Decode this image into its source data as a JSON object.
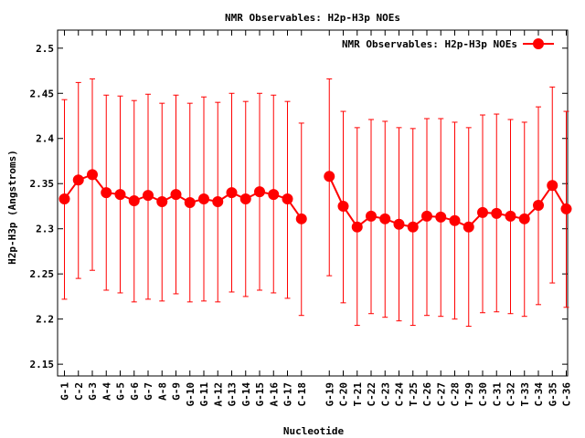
{
  "chart_data": {
    "type": "line",
    "title": "NMR Observables: H2p-H3p NOEs",
    "xlabel": "Nucleotide",
    "ylabel": "H2p-H3p (Angstroms)",
    "ylim": [
      2.137,
      2.52
    ],
    "yticks": [
      "2.15",
      "2.2",
      "2.25",
      "2.3",
      "2.35",
      "2.4",
      "2.45",
      "2.5"
    ],
    "grid": false,
    "legend_position": "top-right",
    "color": "#ff0000",
    "series": [
      {
        "name": "NMR Observables: H2p-H3p NOEs",
        "segments": [
          {
            "categories": [
              "G-1",
              "C-2",
              "G-3",
              "A-4",
              "G-5",
              "G-6",
              "G-7",
              "A-8",
              "G-9",
              "G-10",
              "G-11",
              "A-12",
              "G-13",
              "G-14",
              "G-15",
              "A-16",
              "G-17",
              "C-18"
            ],
            "values": [
              2.333,
              2.354,
              2.36,
              2.34,
              2.338,
              2.331,
              2.337,
              2.33,
              2.338,
              2.329,
              2.333,
              2.33,
              2.34,
              2.333,
              2.341,
              2.338,
              2.333,
              2.311
            ],
            "err_high": [
              2.443,
              2.462,
              2.466,
              2.448,
              2.447,
              2.442,
              2.449,
              2.439,
              2.448,
              2.439,
              2.446,
              2.44,
              2.45,
              2.441,
              2.45,
              2.448,
              2.441,
              2.417
            ],
            "err_low": [
              2.222,
              2.245,
              2.254,
              2.232,
              2.229,
              2.219,
              2.222,
              2.22,
              2.228,
              2.219,
              2.22,
              2.219,
              2.23,
              2.225,
              2.232,
              2.229,
              2.223,
              2.204
            ]
          },
          {
            "categories": [
              "G-19",
              "C-20",
              "T-21",
              "C-22",
              "C-23",
              "C-24",
              "T-25",
              "C-26",
              "C-27",
              "C-28",
              "T-29",
              "C-30",
              "C-31",
              "C-32",
              "T-33",
              "C-34",
              "G-35",
              "C-36"
            ],
            "values": [
              2.358,
              2.325,
              2.302,
              2.314,
              2.311,
              2.305,
              2.302,
              2.314,
              2.313,
              2.309,
              2.302,
              2.318,
              2.317,
              2.314,
              2.311,
              2.326,
              2.348,
              2.322
            ],
            "err_high": [
              2.466,
              2.43,
              2.412,
              2.421,
              2.419,
              2.412,
              2.411,
              2.422,
              2.422,
              2.418,
              2.412,
              2.426,
              2.427,
              2.421,
              2.418,
              2.435,
              2.457,
              2.43
            ],
            "err_low": [
              2.248,
              2.218,
              2.193,
              2.206,
              2.202,
              2.198,
              2.193,
              2.204,
              2.203,
              2.2,
              2.192,
              2.207,
              2.208,
              2.206,
              2.203,
              2.216,
              2.24,
              2.213
            ]
          }
        ]
      }
    ]
  }
}
